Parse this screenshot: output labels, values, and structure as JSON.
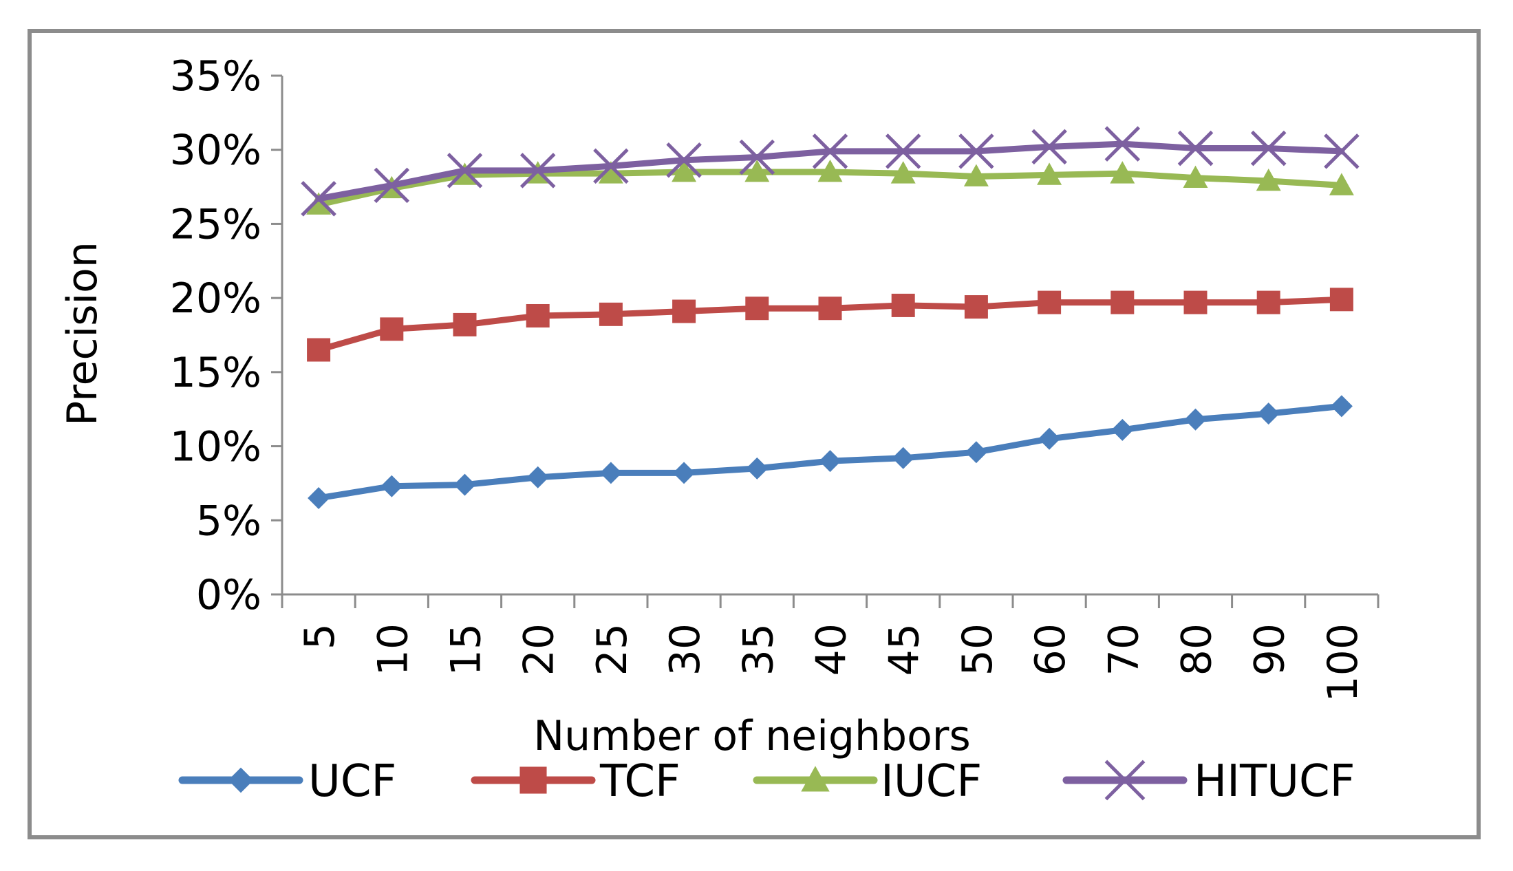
{
  "chart_data": {
    "type": "line",
    "title": "",
    "xlabel": "Number of neighbors",
    "ylabel": "Precision",
    "categories": [
      "5",
      "10",
      "15",
      "20",
      "25",
      "30",
      "35",
      "40",
      "45",
      "50",
      "60",
      "70",
      "80",
      "90",
      "100"
    ],
    "y_ticks": [
      "0%",
      "5%",
      "10%",
      "15%",
      "20%",
      "25%",
      "30%",
      "35%"
    ],
    "ylim": [
      0,
      35
    ],
    "grid": false,
    "legend_position": "bottom",
    "series": [
      {
        "name": "UCF",
        "color": "#4a7ebb",
        "marker": "diamond",
        "values": [
          6.5,
          7.3,
          7.4,
          7.9,
          8.2,
          8.2,
          8.5,
          9.0,
          9.2,
          9.6,
          10.5,
          11.1,
          11.8,
          12.2,
          12.7
        ]
      },
      {
        "name": "TCF",
        "color": "#be4b48",
        "marker": "square",
        "values": [
          16.5,
          17.9,
          18.2,
          18.8,
          18.9,
          19.1,
          19.3,
          19.3,
          19.5,
          19.4,
          19.7,
          19.7,
          19.7,
          19.7,
          19.9
        ]
      },
      {
        "name": "IUCF",
        "color": "#98b954",
        "marker": "triangle",
        "values": [
          26.3,
          27.4,
          28.3,
          28.4,
          28.4,
          28.5,
          28.5,
          28.5,
          28.4,
          28.2,
          28.3,
          28.4,
          28.1,
          27.9,
          27.6
        ]
      },
      {
        "name": "HITUCF",
        "color": "#7d60a0",
        "marker": "x",
        "values": [
          26.7,
          27.6,
          28.6,
          28.6,
          28.9,
          29.3,
          29.5,
          29.9,
          29.9,
          29.9,
          30.2,
          30.4,
          30.1,
          30.1,
          29.9
        ]
      }
    ]
  }
}
